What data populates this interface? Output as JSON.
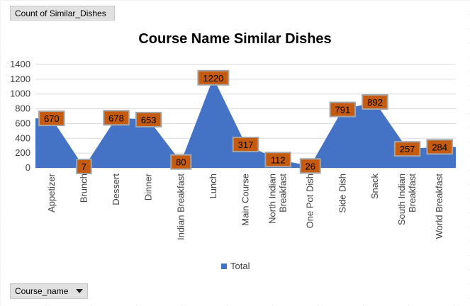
{
  "pivot": {
    "value_field_label": "Count  of Similar_Dishes",
    "axis_field_label": "Course_name"
  },
  "colors": {
    "series": "#4472c4",
    "data_label_fill": "#c55a11",
    "data_label_border": "#a5a5a5"
  },
  "chart_data": {
    "type": "area",
    "title": "Course Name Similar Dishes",
    "xlabel": "",
    "ylabel": "",
    "ylim": [
      0,
      1400
    ],
    "yticks": [
      0,
      200,
      400,
      600,
      800,
      1000,
      1200,
      1400
    ],
    "grid": true,
    "legend": "bottom",
    "categories": [
      "Appetizer",
      "Brunch",
      "Dessert",
      "Dinner",
      "Indian Breakfast",
      "Lunch",
      "Main Course",
      "North Indian Breakfast",
      "One Pot Dish",
      "Side Dish",
      "Snack",
      "South Indian Breakfast",
      "World Breakfast"
    ],
    "series": [
      {
        "name": "Total",
        "values": [
          670,
          7,
          678,
          653,
          80,
          1220,
          317,
          112,
          26,
          791,
          892,
          257,
          284
        ]
      }
    ]
  }
}
